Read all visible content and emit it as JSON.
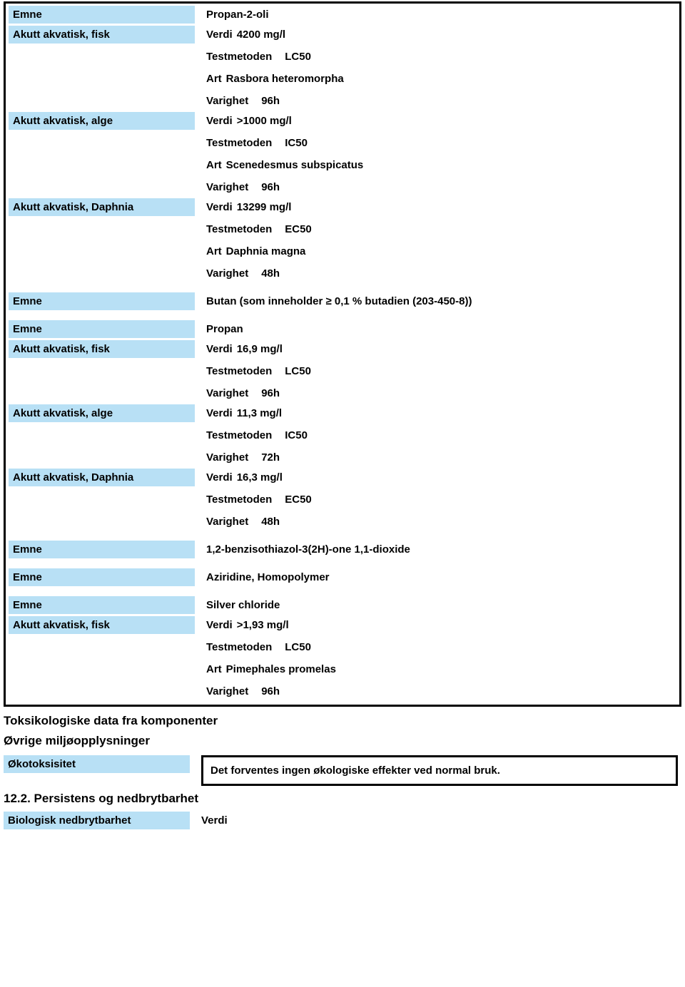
{
  "labels": {
    "emne": "Emne",
    "fisk": "Akutt akvatisk, fisk",
    "alge": "Akutt akvatisk, alge",
    "daphnia": "Akutt akvatisk, Daphnia",
    "okotoks": "Økotoksisitet",
    "bio": "Biologisk nedbrytbarhet"
  },
  "keys": {
    "verdi": "Verdi",
    "testmetoden": "Testmetoden",
    "art": "Art",
    "varighet": "Varighet"
  },
  "box1": {
    "s1": {
      "emne": "Propan-2-oli",
      "fisk": {
        "verdi": "4200 mg/l",
        "test": "LC50",
        "art": "Rasbora heteromorpha",
        "var": "96h"
      },
      "alge": {
        "verdi": ">1000 mg/l",
        "test": "IC50",
        "art": "Scenedesmus subspicatus",
        "var": "96h"
      },
      "daphnia": {
        "verdi": "13299 mg/l",
        "test": "EC50",
        "art": "Daphnia magna",
        "var": "48h"
      }
    },
    "s2": {
      "emne": "Butan (som inneholder ≥ 0,1 % butadien (203-450-8))"
    },
    "s3": {
      "emne": "Propan",
      "fisk": {
        "verdi": "16,9 mg/l",
        "test": "LC50",
        "var": "96h"
      },
      "alge": {
        "verdi": "11,3 mg/l",
        "test": "IC50",
        "var": "72h"
      },
      "daphnia": {
        "verdi": "16,3 mg/l",
        "test": "EC50",
        "var": "48h"
      }
    },
    "s4": {
      "emne": "1,2-benzisothiazol-3(2H)-one 1,1-dioxide"
    },
    "s5": {
      "emne": "Aziridine, Homopolymer"
    },
    "s6": {
      "emne": "Silver chloride",
      "fisk": {
        "verdi": ">1,93 mg/l",
        "test": "LC50",
        "art": "Pimephales promelas",
        "var": "96h"
      }
    }
  },
  "headings": {
    "toks": "Toksikologiske data fra komponenter",
    "ovrige": "Øvrige miljøopplysninger",
    "sect122": "12.2. Persistens og nedbrytbarhet"
  },
  "okotoks_text": "Det forventes ingen økologiske effekter ved normal bruk.",
  "bio_value": "Verdi",
  "colors": {
    "label_bg": "#b8e0f5",
    "border": "#000000",
    "text": "#000000",
    "page_bg": "#ffffff"
  }
}
